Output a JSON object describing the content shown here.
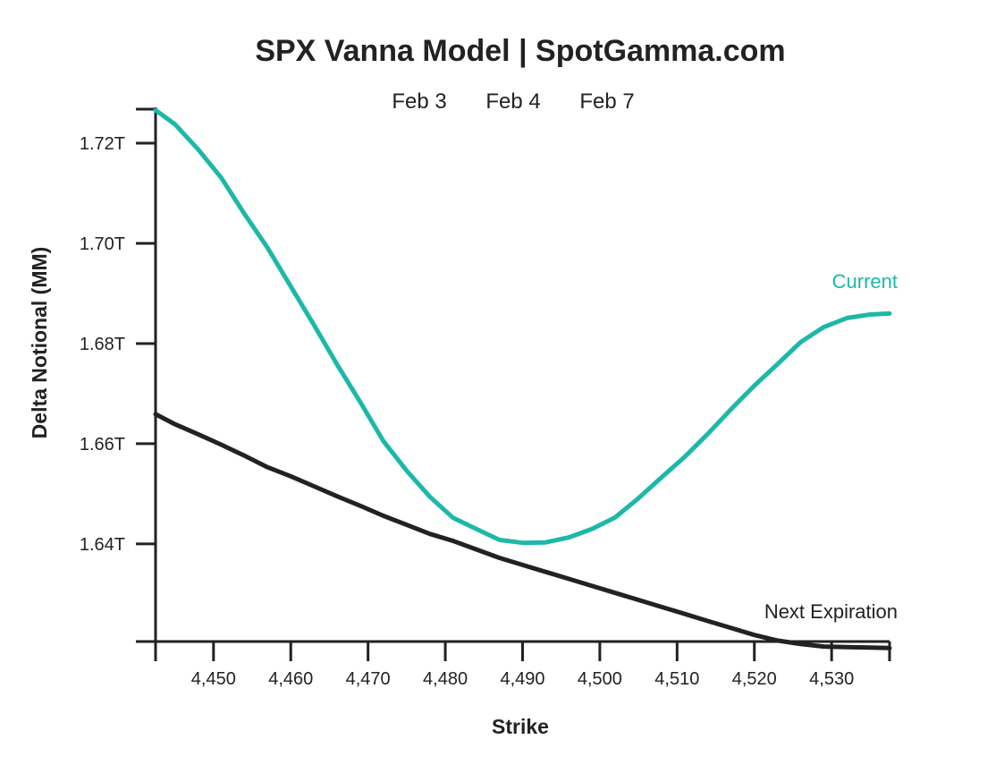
{
  "chart_data": {
    "type": "line",
    "title": "SPX Vanna Model | SpotGamma.com",
    "header_labels": [
      "Feb 3",
      "Feb 4",
      "Feb 7"
    ],
    "xlabel": "Strike",
    "ylabel": "Delta Notional (MM)",
    "xlim": [
      4442.5,
      4537.5
    ],
    "ylim": [
      1.6205,
      1.7268
    ],
    "x_ticks": [
      4450,
      4460,
      4470,
      4480,
      4490,
      4500,
      4510,
      4520,
      4530
    ],
    "x_tick_labels": [
      "4,450",
      "4,460",
      "4,470",
      "4,480",
      "4,490",
      "4,500",
      "4,510",
      "4,520",
      "4,530"
    ],
    "y_ticks": [
      1.64,
      1.66,
      1.68,
      1.7,
      1.72
    ],
    "y_tick_labels": [
      "1.64T",
      "1.66T",
      "1.68T",
      "1.70T",
      "1.72T"
    ],
    "grid": false,
    "series": [
      {
        "name": "Current",
        "color": "#1cb8a8",
        "x": [
          4442.5,
          4445,
          4448,
          4451,
          4454,
          4457,
          4460,
          4463,
          4466,
          4469,
          4472,
          4475,
          4478,
          4481,
          4484,
          4487,
          4490,
          4493,
          4496,
          4499,
          4502,
          4505,
          4508,
          4511,
          4514,
          4517,
          4520,
          4523,
          4526,
          4529,
          4532,
          4535,
          4537.5
        ],
        "values": [
          1.7266,
          1.7238,
          1.7188,
          1.7131,
          1.7059,
          1.6991,
          1.6914,
          1.6837,
          1.6758,
          1.6683,
          1.6605,
          1.6546,
          1.6494,
          1.6452,
          1.643,
          1.6408,
          1.6402,
          1.6403,
          1.6413,
          1.643,
          1.6453,
          1.6491,
          1.6533,
          1.6574,
          1.662,
          1.6669,
          1.6716,
          1.6759,
          1.6803,
          1.6833,
          1.6851,
          1.6858,
          1.686
        ]
      },
      {
        "name": "Next Expiration",
        "color": "#222222",
        "x": [
          4442.5,
          4445,
          4448,
          4451,
          4454,
          4457,
          4460,
          4463,
          4466,
          4469,
          4472,
          4475,
          4478,
          4481,
          4484,
          4487,
          4490,
          4493,
          4496,
          4499,
          4502,
          4505,
          4508,
          4511,
          4514,
          4517,
          4520,
          4523,
          4526,
          4529,
          4532,
          4535,
          4537.5
        ],
        "values": [
          1.6659,
          1.6639,
          1.6619,
          1.6598,
          1.6576,
          1.6553,
          1.6535,
          1.6515,
          1.6495,
          1.6476,
          1.6456,
          1.6438,
          1.642,
          1.6406,
          1.6389,
          1.6372,
          1.6358,
          1.6344,
          1.633,
          1.6316,
          1.6302,
          1.6288,
          1.6274,
          1.626,
          1.6246,
          1.6232,
          1.6218,
          1.6207,
          1.62,
          1.6195,
          1.6194,
          1.6193,
          1.6192
        ]
      }
    ]
  }
}
